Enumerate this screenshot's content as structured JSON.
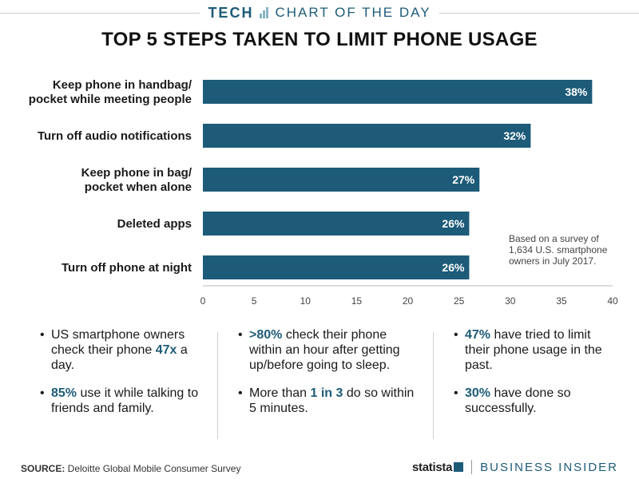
{
  "header": {
    "brand": "TECH",
    "subtitle": "CHART OF THE DAY",
    "icon": "bar-chart-icon"
  },
  "chart_data": {
    "type": "bar",
    "orientation": "horizontal",
    "title": "TOP 5 STEPS TAKEN TO LIMIT PHONE USAGE",
    "categories": [
      [
        "Keep phone in handbag/",
        "pocket while meeting people"
      ],
      [
        "Turn off audio notifications"
      ],
      [
        "Keep phone in bag/",
        "pocket when alone"
      ],
      [
        "Deleted apps"
      ],
      [
        "Turn off phone at night"
      ]
    ],
    "values": [
      38,
      32,
      27,
      26,
      26
    ],
    "value_labels": [
      "38%",
      "32%",
      "27%",
      "26%",
      "26%"
    ],
    "xlim": [
      0,
      40
    ],
    "xticks": [
      "0",
      "5",
      "10",
      "15",
      "20",
      "25",
      "30",
      "35",
      "40"
    ],
    "grid": false,
    "bar_color": "#1d5b78"
  },
  "note": {
    "lines": [
      "Based on a survey of",
      "1,634 U.S. smartphone",
      "owners in July 2017."
    ]
  },
  "facts": [
    [
      [
        "US smartphone owners check their phone ",
        {
          "hl": "47x"
        },
        " a day."
      ],
      [
        {
          "hl": "85%"
        },
        " use it while talking to friends and family."
      ]
    ],
    [
      [
        {
          "hl": ">80%"
        },
        " check their phone within an hour after getting up/before going to sleep."
      ],
      [
        "More than ",
        {
          "hl": "1 in 3"
        },
        " do so within 5 minutes."
      ]
    ],
    [
      [
        {
          "hl": "47%"
        },
        " have tried to limit their phone usage in the past."
      ],
      [
        {
          "hl": "30%"
        },
        " have done so successfully."
      ]
    ]
  ],
  "footer": {
    "source_label": "SOURCE:",
    "source_text": " Deloitte Global Mobile Consumer Survey",
    "logo_statista": "statista",
    "logo_bi": "BUSINESS INSIDER"
  },
  "colors": {
    "accent": "#1d5b78",
    "text": "#1a1a1a"
  }
}
